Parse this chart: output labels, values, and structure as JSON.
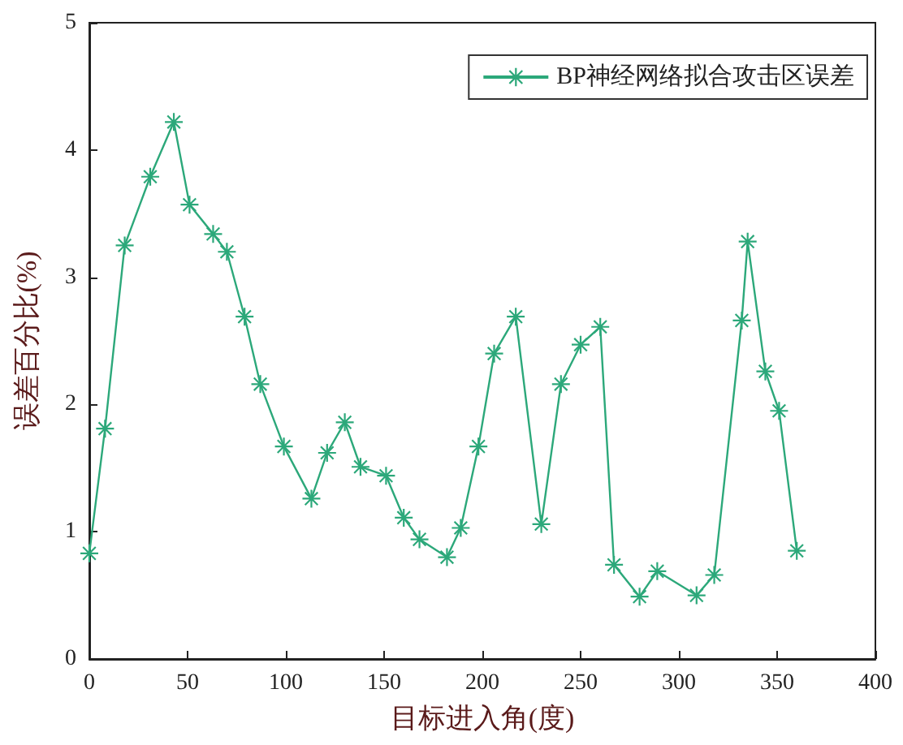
{
  "chart_data": {
    "type": "line",
    "xlabel": "目标进入角(度)",
    "ylabel": "误差百分比(%)",
    "xlim": [
      0,
      400
    ],
    "xticks": [
      0,
      50,
      100,
      150,
      200,
      250,
      300,
      350,
      400
    ],
    "ylim": [
      0,
      5
    ],
    "yticks": [
      0,
      1,
      2,
      3,
      4,
      5
    ],
    "grid": false,
    "legend": "top right",
    "marker": "star",
    "line_style": "solid",
    "series": [
      {
        "name": "BP神经网络拟合攻击区误差",
        "color": "#2ca87a",
        "x": [
          0,
          8,
          18,
          31,
          43,
          51,
          63,
          70,
          79,
          87,
          99,
          113,
          121,
          130,
          138,
          151,
          160,
          168,
          182,
          189,
          198,
          206,
          217,
          230,
          240,
          250,
          260,
          267,
          280,
          289,
          309,
          318,
          332,
          335,
          344,
          351,
          360
        ],
        "values": [
          0.83,
          1.81,
          3.25,
          3.79,
          4.22,
          3.57,
          3.34,
          3.2,
          2.69,
          2.16,
          1.67,
          1.26,
          1.62,
          1.86,
          1.51,
          1.44,
          1.11,
          0.94,
          0.8,
          1.03,
          1.67,
          2.4,
          2.69,
          1.06,
          2.16,
          2.47,
          2.61,
          0.74,
          0.49,
          0.69,
          0.5,
          0.66,
          2.66,
          3.28,
          2.26,
          1.95,
          0.85
        ]
      }
    ]
  }
}
